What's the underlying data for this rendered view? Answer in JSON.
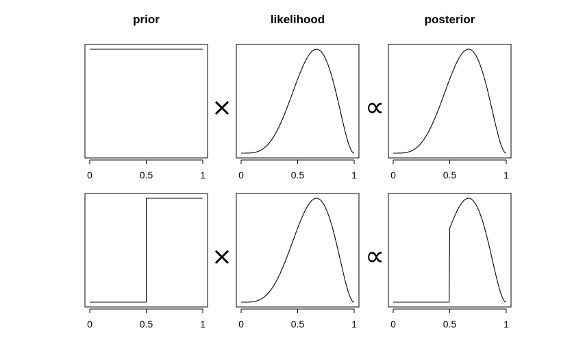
{
  "chart_data": [
    {
      "type": "line",
      "title": "prior",
      "xlim": [
        0,
        1
      ],
      "xticks": [
        "0",
        "0.5",
        "1"
      ],
      "x": [
        0,
        1
      ],
      "series": [
        {
          "values": [
            1,
            1
          ]
        }
      ]
    },
    {
      "type": "line",
      "title": "likelihood",
      "xlim": [
        0,
        1
      ],
      "xticks": [
        "0",
        "0.5",
        "1"
      ],
      "x": [
        0,
        0.1,
        0.2,
        0.3,
        0.4,
        0.5,
        0.6,
        0.667,
        0.7,
        0.8,
        0.9,
        1
      ],
      "series": [
        {
          "values": [
            0,
            0.0005,
            0.013,
            0.085,
            0.263,
            0.53,
            0.869,
            1,
            0.974,
            0.744,
            0.263,
            0
          ]
        }
      ]
    },
    {
      "type": "line",
      "title": "posterior",
      "xlim": [
        0,
        1
      ],
      "xticks": [
        "0",
        "0.5",
        "1"
      ],
      "x": [
        0,
        0.1,
        0.2,
        0.3,
        0.4,
        0.5,
        0.6,
        0.667,
        0.7,
        0.8,
        0.9,
        1
      ],
      "series": [
        {
          "values": [
            0,
            0.0005,
            0.013,
            0.085,
            0.263,
            0.53,
            0.869,
            1,
            0.974,
            0.744,
            0.263,
            0
          ]
        }
      ]
    },
    {
      "type": "line",
      "title": "",
      "xlim": [
        0,
        1
      ],
      "xticks": [
        "0",
        "0.5",
        "1"
      ],
      "x": [
        0,
        0.5,
        0.5,
        1
      ],
      "series": [
        {
          "values": [
            0,
            0,
            1,
            1
          ]
        }
      ]
    },
    {
      "type": "line",
      "title": "",
      "xlim": [
        0,
        1
      ],
      "xticks": [
        "0",
        "0.5",
        "1"
      ],
      "x": [
        0,
        0.1,
        0.2,
        0.3,
        0.4,
        0.5,
        0.6,
        0.667,
        0.7,
        0.8,
        0.9,
        1
      ],
      "series": [
        {
          "values": [
            0,
            0.0005,
            0.013,
            0.085,
            0.263,
            0.53,
            0.869,
            1,
            0.974,
            0.744,
            0.263,
            0
          ]
        }
      ]
    },
    {
      "type": "line",
      "title": "",
      "xlim": [
        0,
        1
      ],
      "xticks": [
        "0",
        "0.5",
        "1"
      ],
      "x": [
        0,
        0.5,
        0.5,
        0.6,
        0.667,
        0.7,
        0.8,
        0.9,
        1
      ],
      "series": [
        {
          "values": [
            0,
            0,
            0.53,
            0.869,
            1,
            0.974,
            0.744,
            0.263,
            0
          ]
        }
      ]
    }
  ],
  "operators": [
    {
      "symbol": "×"
    },
    {
      "symbol": "∝"
    },
    {
      "symbol": "×"
    },
    {
      "symbol": "∝"
    }
  ],
  "colors": {
    "line": "#000000",
    "frame": "#000000",
    "background": "#ffffff"
  }
}
